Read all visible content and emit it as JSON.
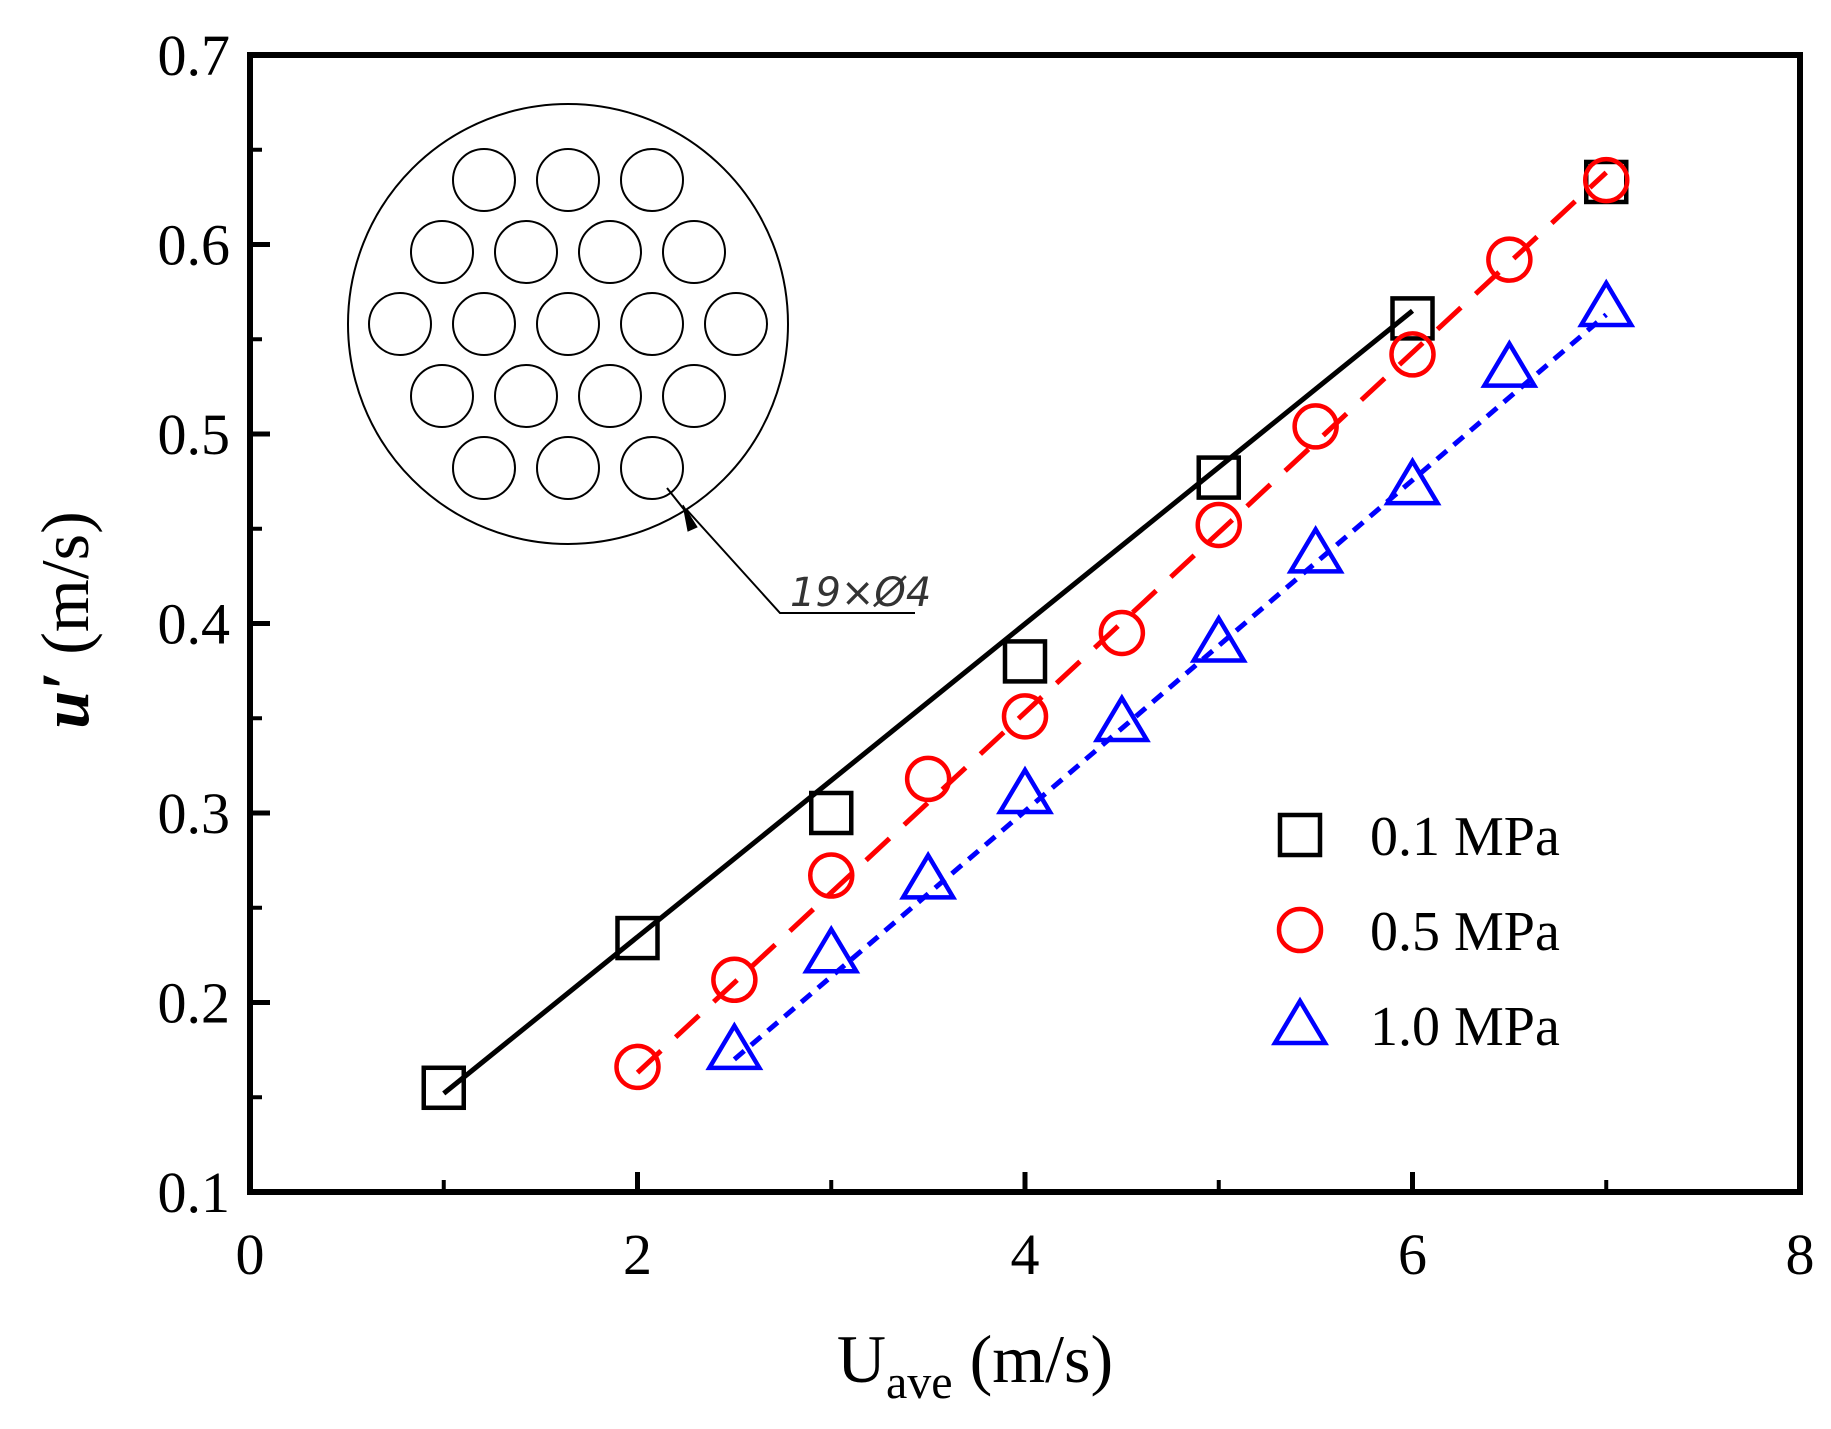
{
  "chart_data": {
    "type": "scatter",
    "title": "",
    "xlabel": "U",
    "xlabel_sub": "ave",
    "xlabel_unit": " (m/s)",
    "ylabel": "u′",
    "ylabel_unit": " (m/s)",
    "xlim": [
      0,
      8
    ],
    "ylim": [
      0.1,
      0.7
    ],
    "xticks": [
      0,
      2,
      4,
      6,
      8
    ],
    "xtick_labels": [
      "0",
      "2",
      "4",
      "6",
      "8"
    ],
    "yticks": [
      0.1,
      0.2,
      0.3,
      0.4,
      0.5,
      0.6,
      0.7
    ],
    "ytick_labels": [
      "0.1",
      "0.2",
      "0.3",
      "0.4",
      "0.5",
      "0.6",
      "0.7"
    ],
    "legend_position": "bottom-right",
    "series": [
      {
        "name": "0.1 MPa",
        "marker": "square",
        "color": "#000000",
        "line_style": "solid",
        "x": [
          1,
          2,
          3,
          4,
          5,
          6,
          7
        ],
        "y": [
          0.155,
          0.234,
          0.3,
          0.38,
          0.477,
          0.561,
          0.633
        ],
        "fit": {
          "x": [
            1,
            6
          ],
          "y": [
            0.152,
            0.565
          ]
        }
      },
      {
        "name": "0.5 MPa",
        "marker": "circle",
        "color": "#ff0000",
        "line_style": "dashed",
        "x": [
          2,
          2.5,
          3,
          3.5,
          4,
          4.5,
          5,
          5.5,
          6,
          6.5,
          7
        ],
        "y": [
          0.166,
          0.212,
          0.267,
          0.318,
          0.351,
          0.395,
          0.452,
          0.504,
          0.542,
          0.592,
          0.634
        ],
        "fit": {
          "x": [
            2,
            7
          ],
          "y": [
            0.163,
            0.638
          ]
        }
      },
      {
        "name": "1.0 MPa",
        "marker": "triangle",
        "color": "#0000ff",
        "line_style": "dotted",
        "x": [
          2.5,
          3,
          3.5,
          4,
          4.5,
          5,
          5.5,
          6,
          6.5,
          7
        ],
        "y": [
          0.175,
          0.226,
          0.265,
          0.31,
          0.348,
          0.39,
          0.437,
          0.473,
          0.535,
          0.567
        ],
        "fit": {
          "x": [
            2.5,
            7
          ],
          "y": [
            0.17,
            0.563
          ]
        }
      }
    ],
    "inset": {
      "label": "19×Ø4",
      "rows": [
        3,
        4,
        5,
        4,
        3
      ]
    }
  }
}
